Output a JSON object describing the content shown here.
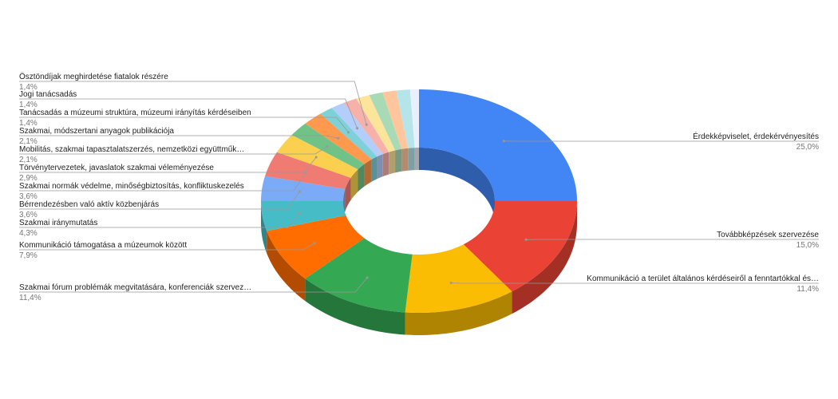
{
  "chart_data": {
    "type": "pie",
    "donut": true,
    "three_d": true,
    "categories": [
      "Érdekképviselet, érdekérvényesítés",
      "Továbbképzések szervezése",
      "Kommunikáció a terület általános kérdéseiről a fenntartókkal és…",
      "Szakmai fórum problémák megvitatására, konferenciák szervez…",
      "Kommunikáció támogatása a múzeumok között",
      "Szakmai iránymutatás",
      "Bérrendezésben való aktív közbenjárás",
      "Szakmai normák védelme, minőségbiztosítás, konfliktuskezelés",
      "Törvénytervezetek, javaslatok szakmai véleményezése",
      "Mobilitás, szakmai tapasztalatszerzés, nemzetközi együttműk…",
      "Szakmai, módszertani anyagok publikációja",
      "Tanácsadás a múzeumi struktúra, múzeumi irányítás kérdéseiben",
      "Jogi tanácsadás",
      "Ösztöndíjak meghirdetése fiatalok részére",
      null,
      null,
      null,
      null,
      null
    ],
    "values": [
      25.0,
      15.0,
      11.4,
      11.4,
      7.9,
      4.3,
      3.6,
      3.6,
      2.9,
      2.1,
      2.1,
      1.4,
      1.4,
      1.4,
      1.4,
      1.4,
      1.4,
      1.4,
      0.9
    ],
    "value_labels": [
      "25,0%",
      "15,0%",
      "11,4%",
      "11,4%",
      "7,9%",
      "4,3%",
      "3,6%",
      "3,6%",
      "2,9%",
      "2,1%",
      "2,1%",
      "1,4%",
      "1,4%",
      "1,4%",
      null,
      null,
      null,
      null,
      null
    ],
    "colors": [
      "#4285f4",
      "#ea4335",
      "#fbbc04",
      "#34a853",
      "#ff6d01",
      "#46bdc6",
      "#7baaf7",
      "#f07b72",
      "#fcd04f",
      "#71c287",
      "#ff994d",
      "#7ed1d7",
      "#b3cefb",
      "#f7b1ab",
      "#fde49b",
      "#a8dab5",
      "#ffc69e",
      "#b5e5e8",
      "#e8f0fe"
    ]
  }
}
